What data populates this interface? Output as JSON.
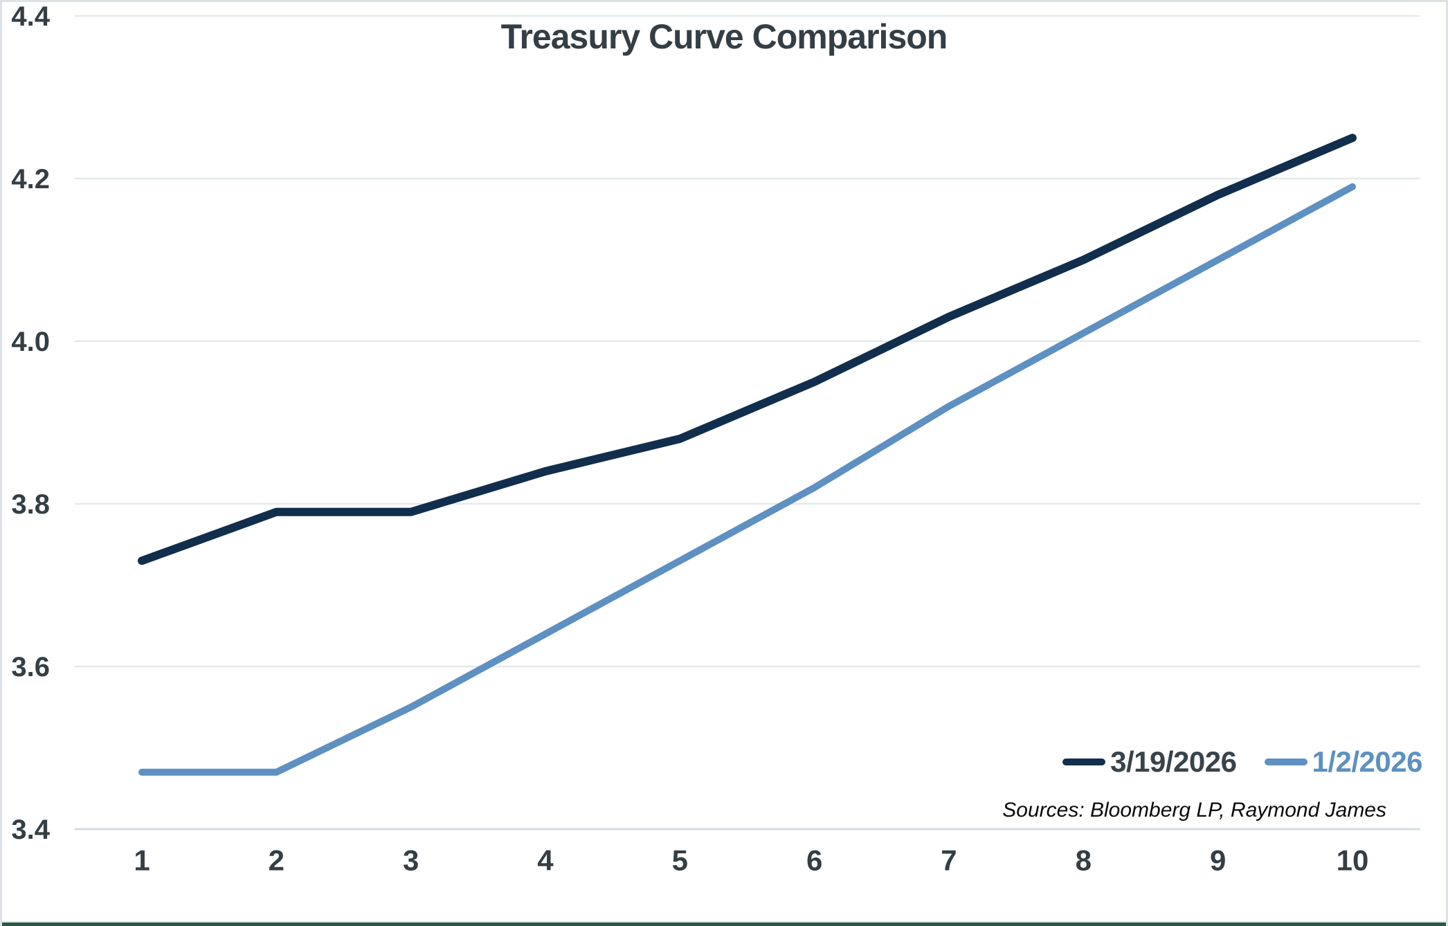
{
  "title": "Treasury Curve Comparison",
  "source_note": "Sources: Bloomberg LP, Raymond James",
  "legend": [
    {
      "label": "3/19/2026",
      "swatch_color": "#112e4c",
      "text_color": "#39434a"
    },
    {
      "label": "1/2/2026",
      "swatch_color": "#5e90c1",
      "text_color": "#5e90c1"
    }
  ],
  "colors": {
    "series_navy": "#112e4c",
    "series_blue": "#5e90c1",
    "axis_text": "#343e44",
    "gridline": "#e4e9ec",
    "baseline": "#d6dcdf",
    "frame_border": "#dde2e6",
    "bottom_accent_green": "#265845"
  },
  "chart_data": {
    "type": "line",
    "title": "Treasury Curve Comparison",
    "x": [
      1,
      2,
      3,
      4,
      5,
      6,
      7,
      8,
      9,
      10
    ],
    "series": [
      {
        "name": "3/19/2026",
        "color": "#112e4c",
        "values": [
          3.73,
          3.79,
          3.79,
          3.84,
          3.88,
          3.95,
          4.03,
          4.1,
          4.18,
          4.25
        ]
      },
      {
        "name": "1/2/2026",
        "color": "#5e90c1",
        "values": [
          3.47,
          3.47,
          3.55,
          3.64,
          3.73,
          3.82,
          3.92,
          4.01,
          4.1,
          4.19
        ]
      }
    ],
    "xlabel": "",
    "ylabel": "",
    "ylim": [
      3.4,
      4.4
    ],
    "yticks": [
      3.4,
      3.6,
      3.8,
      4.0,
      4.2,
      4.4
    ],
    "ytick_labels": [
      "3.4",
      "3.6",
      "3.8",
      "4.0",
      "4.2",
      "4.4"
    ],
    "grid": true,
    "legend_position": "bottom-right",
    "annotations": [
      "Sources: Bloomberg LP, Raymond James"
    ]
  }
}
